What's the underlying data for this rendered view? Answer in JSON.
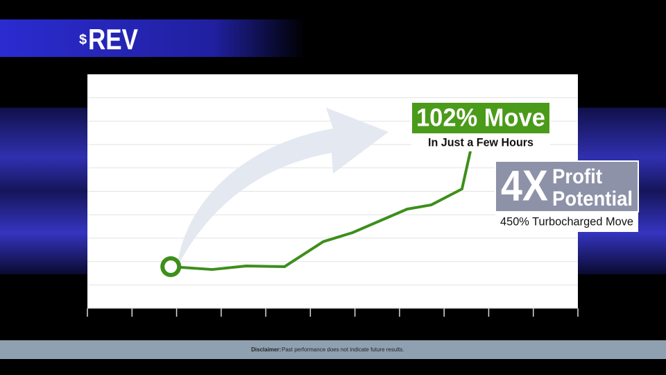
{
  "chart_data": {
    "type": "line",
    "ticker": {
      "prefix": "$",
      "symbol": "REV"
    },
    "x": [
      1.87,
      2.8,
      3.56,
      4.42,
      5.29,
      5.94,
      7.17,
      7.71,
      8.4,
      8.65
    ],
    "series": [
      {
        "color": "#3d8f1c",
        "values": [
          1.78,
          1.66,
          1.81,
          1.78,
          2.85,
          3.23,
          4.24,
          4.42,
          5.1,
          7.24
        ]
      }
    ],
    "xlim": [
      0,
      11
    ],
    "xticks": [
      0,
      1,
      2,
      3,
      4,
      5,
      6,
      7,
      8,
      9,
      10,
      11
    ],
    "ylim": [
      0,
      10
    ],
    "yticks": [
      1,
      2,
      3,
      4,
      5,
      6,
      7,
      8,
      9
    ],
    "grid": true,
    "annotations": {
      "move": {
        "headline": "102% Move",
        "subline": "In Just a Few Hours",
        "color": "#4b9b1a"
      },
      "profit": {
        "big": "4X",
        "line1": "Profit",
        "line2": "Potential",
        "subline": "450% Turbocharged Move",
        "color": "#8d92a8"
      }
    },
    "disclaimer": {
      "label": "Disclaimer:",
      "text": "Past performance does not indicate future results."
    }
  }
}
